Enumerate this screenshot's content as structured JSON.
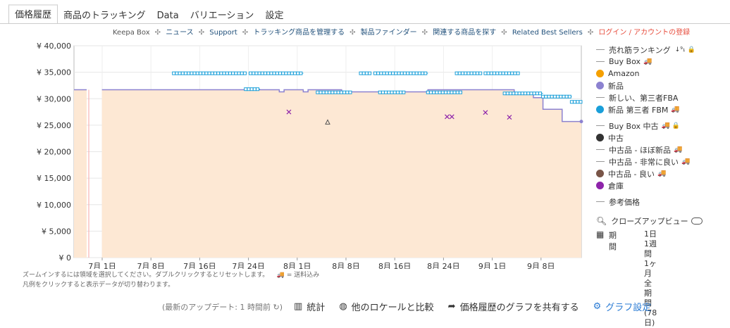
{
  "tabs": [
    "価格履歴",
    "商品のトラッキング",
    "Data",
    "バリエーション",
    "設定"
  ],
  "topnav": {
    "items": [
      "Keepa Box",
      "ニュース",
      "Support",
      "トラッキング商品を管理する",
      "製品ファインダー",
      "関連する商品を探す",
      "Related Best Sellers"
    ],
    "login": "ログイン / アカウントの登録",
    "sep": "✣"
  },
  "chart_data": {
    "type": "line",
    "yticks": [
      "¥ 40,000",
      "¥ 35,000",
      "¥ 30,000",
      "¥ 25,000",
      "¥ 20,000",
      "¥ 15,000",
      "¥ 10,000",
      "¥ 5,000",
      "¥ 0"
    ],
    "xticks": [
      "7月 1日",
      "7月 8日",
      "7月 16日",
      "7月 24日",
      "8月 1日",
      "8月 8日",
      "8月 16日",
      "8月 24日",
      "9月 1日",
      "9月 8日"
    ],
    "ylim": [
      0,
      40000
    ],
    "series": [
      {
        "name": "新品",
        "color": "#8c82d0",
        "type": "step",
        "points": [
          [
            0,
            31700
          ],
          [
            0.06,
            31700
          ],
          [
            0.06,
            31700
          ],
          [
            0.37,
            31700
          ],
          [
            0.37,
            31300
          ],
          [
            0.38,
            31300
          ],
          [
            0.38,
            31700
          ],
          [
            0.42,
            31700
          ],
          [
            0.42,
            31300
          ],
          [
            0.43,
            31300
          ],
          [
            0.43,
            31700
          ],
          [
            0.5,
            31700
          ],
          [
            0.5,
            31300
          ],
          [
            0.68,
            31300
          ],
          [
            0.68,
            31700
          ],
          [
            0.86,
            31700
          ],
          [
            0.86,
            31200
          ],
          [
            0.9,
            31200
          ],
          [
            0.9,
            30200
          ],
          [
            0.92,
            30200
          ],
          [
            0.92,
            28000
          ],
          [
            0.96,
            28000
          ],
          [
            0.96,
            25700
          ],
          [
            1.0,
            25700
          ]
        ]
      },
      {
        "name": "新品 第三者 FBM",
        "color": "#1a9fd9",
        "type": "markers",
        "segments": [
          [
            0.15,
            0.3,
            34800
          ],
          [
            0.3,
            0.33,
            31800
          ],
          [
            0.31,
            0.42,
            34800
          ],
          [
            0.45,
            0.52,
            31200
          ],
          [
            0.54,
            0.56,
            34800
          ],
          [
            0.57,
            0.68,
            34800
          ],
          [
            0.58,
            0.63,
            31200
          ],
          [
            0.68,
            0.75,
            31200
          ],
          [
            0.74,
            0.79,
            34800
          ],
          [
            0.8,
            0.87,
            34800
          ],
          [
            0.84,
            0.92,
            31000
          ],
          [
            0.92,
            0.98,
            30400
          ],
          [
            0.98,
            1.0,
            29400
          ]
        ]
      },
      {
        "name": "倉庫",
        "color": "#8e24aa",
        "type": "x",
        "points": [
          [
            0.39,
            27500
          ],
          [
            0.72,
            26600
          ],
          [
            0.73,
            26600
          ],
          [
            0.8,
            27400
          ],
          [
            0.85,
            26500
          ]
        ]
      }
    ],
    "legend": [
      {
        "label": "売れ筋ランキング",
        "kind": "line",
        "color": "#999",
        "extra": "↓⁹₁",
        "lock": true
      },
      {
        "label": "Buy Box",
        "kind": "line",
        "color": "#999",
        "truck": true
      },
      {
        "label": "Amazon",
        "kind": "dot",
        "color": "#f5a000"
      },
      {
        "label": "新品",
        "kind": "dot",
        "color": "#8c82d0"
      },
      {
        "label": "新しい、第三者FBA",
        "kind": "line",
        "color": "#999"
      },
      {
        "label": "新品 第三者 FBM",
        "kind": "dot",
        "color": "#1a9fd9",
        "truck": true
      },
      {
        "label": "Buy Box 中古",
        "kind": "line",
        "color": "#999",
        "truck": true,
        "lock": true,
        "gap": true
      },
      {
        "label": "中古",
        "kind": "dot",
        "color": "#333"
      },
      {
        "label": "中古品 - ほぼ新品",
        "kind": "line",
        "color": "#999",
        "truck": true
      },
      {
        "label": "中古品 - 非常に良い",
        "kind": "line",
        "color": "#999",
        "truck": true
      },
      {
        "label": "中古品 - 良い",
        "kind": "dot",
        "color": "#795548",
        "truck": true
      },
      {
        "label": "倉庫",
        "kind": "dot",
        "color": "#8e24aa"
      },
      {
        "label": "参考価格",
        "kind": "line",
        "color": "#999",
        "gap": true
      }
    ]
  },
  "zoom": {
    "label": "クローズアップビュー"
  },
  "period": {
    "label": "期間",
    "options": [
      "1日",
      "1週間",
      "1ヶ月",
      "全期間 (78 日)"
    ]
  },
  "notes": [
    "ズームインするには領域を選択してください。ダブルクリックするとリセットします。",
    "🚚 = 送料込み",
    "凡例をクリックすると表示データが切り替わります。"
  ],
  "bottom": {
    "update": "(最新のアップデート: 1 時間前 ↻)",
    "stats": "統計",
    "compare": "他のロケールと比較",
    "share": "価格履歴のグラフを共有する",
    "settings": "グラフ設定"
  }
}
